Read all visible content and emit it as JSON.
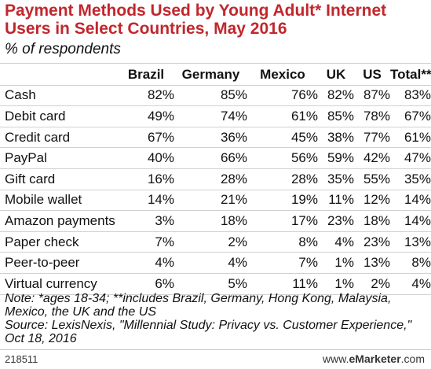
{
  "title": "Payment Methods Used by Young Adult* Internet Users in Select Countries, May 2016",
  "subtitle": "% of respondents",
  "chart_data": {
    "type": "table",
    "columns": [
      "Brazil",
      "Germany",
      "Mexico",
      "UK",
      "US",
      "Total**"
    ],
    "rows": [
      {
        "label": "Cash",
        "values": [
          "82%",
          "85%",
          "76%",
          "82%",
          "87%",
          "83%"
        ]
      },
      {
        "label": "Debit card",
        "values": [
          "49%",
          "74%",
          "61%",
          "85%",
          "78%",
          "67%"
        ]
      },
      {
        "label": "Credit card",
        "values": [
          "67%",
          "36%",
          "45%",
          "38%",
          "77%",
          "61%"
        ]
      },
      {
        "label": "PayPal",
        "values": [
          "40%",
          "66%",
          "56%",
          "59%",
          "42%",
          "47%"
        ]
      },
      {
        "label": "Gift card",
        "values": [
          "16%",
          "28%",
          "28%",
          "35%",
          "55%",
          "35%"
        ]
      },
      {
        "label": "Mobile wallet",
        "values": [
          "14%",
          "21%",
          "19%",
          "11%",
          "12%",
          "14%"
        ]
      },
      {
        "label": "Amazon payments",
        "values": [
          "3%",
          "18%",
          "17%",
          "23%",
          "18%",
          "14%"
        ]
      },
      {
        "label": "Paper check",
        "values": [
          "7%",
          "2%",
          "8%",
          "4%",
          "23%",
          "13%"
        ]
      },
      {
        "label": "Peer-to-peer",
        "values": [
          "4%",
          "4%",
          "7%",
          "1%",
          "13%",
          "8%"
        ]
      },
      {
        "label": "Virtual currency",
        "values": [
          "6%",
          "5%",
          "11%",
          "1%",
          "2%",
          "4%"
        ]
      }
    ]
  },
  "notes": {
    "note_line1": "Note: *ages 18-34; **includes Brazil, Germany, Hong Kong, Malaysia,",
    "note_line2": "Mexico, the UK and the US",
    "source_line1": "Source: LexisNexis, \"Millennial Study: Privacy vs. Customer Experience,\"",
    "source_line2": "Oct 18, 2016"
  },
  "footer": {
    "chart_id": "218511",
    "brand_prefix": "www.",
    "brand_name": "eMarketer",
    "brand_suffix": ".com"
  },
  "colors": {
    "title": "#c1272d",
    "rule": "#d0d0d0"
  }
}
